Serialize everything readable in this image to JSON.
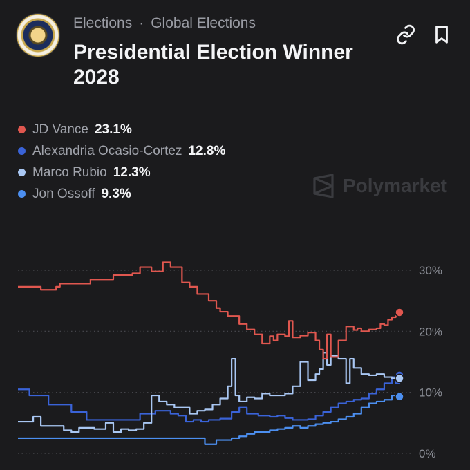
{
  "header": {
    "breadcrumb": [
      "Elections",
      "Global Elections"
    ],
    "breadcrumb_separator": "·",
    "title": "Presidential Election Winner 2028",
    "icons": [
      "link-icon",
      "bookmark-icon"
    ],
    "seal_icon": "presidential-seal-icon"
  },
  "watermark": {
    "text": "Polymarket",
    "icon": "polymarket-logo-icon"
  },
  "colors": {
    "background": "#1b1b1d",
    "vance": "#e0574f",
    "aoc": "#3a63d8",
    "rubio": "#a9c7f3",
    "ossoff": "#4c8ff0"
  },
  "chart_data": {
    "type": "line",
    "ylim": [
      0,
      30
    ],
    "yticks": [
      "30%",
      "20%",
      "10%",
      "0%"
    ],
    "ytick_values": [
      30,
      20,
      10,
      0
    ],
    "grid": true,
    "legend_position": "top-left",
    "x_range": [
      0,
      100
    ],
    "series": [
      {
        "name": "JD Vance",
        "value_label": "23.1%",
        "color": "#e0574f",
        "x": [
          0,
          5,
          6,
          10,
          11,
          18,
          19,
          24,
          25,
          30,
          32,
          35,
          38,
          40,
          43,
          45,
          47,
          49,
          50,
          52,
          53,
          55,
          58,
          60,
          62,
          64,
          66,
          67,
          68,
          70,
          71,
          72,
          74,
          76,
          78,
          79,
          80,
          81,
          82,
          84,
          86,
          88,
          89,
          90,
          92,
          94,
          95,
          96,
          97,
          98,
          99,
          100
        ],
        "y": [
          27.3,
          27.3,
          26.8,
          27.3,
          27.8,
          27.8,
          28.5,
          28.5,
          29.2,
          29.5,
          30.5,
          29.8,
          31.3,
          30.5,
          28,
          27.3,
          26.1,
          26.1,
          25,
          23.8,
          23.2,
          22.5,
          21.2,
          20.3,
          19.5,
          18,
          19.2,
          18.5,
          19.5,
          19.2,
          21.7,
          19,
          19.3,
          19.8,
          18.5,
          17,
          15.5,
          19.5,
          15.8,
          18.5,
          20.8,
          20.2,
          20.5,
          20,
          20.3,
          20.5,
          21.2,
          21,
          21.9,
          22.3,
          22.5,
          23.1
        ]
      },
      {
        "name": "Alexandria Ocasio-Cortez",
        "value_label": "12.8%",
        "color": "#3a63d8",
        "x": [
          0,
          2,
          3,
          6,
          8,
          10,
          14,
          18,
          22,
          24,
          28,
          30,
          32,
          34,
          36,
          38,
          40,
          42,
          44,
          46,
          48,
          50,
          53,
          56,
          58,
          60,
          63,
          66,
          68,
          70,
          72,
          74,
          76,
          78,
          80,
          82,
          84,
          86,
          88,
          90,
          92,
          94,
          96,
          98,
          99,
          100
        ],
        "y": [
          10.5,
          10.5,
          9.5,
          9.5,
          8,
          8,
          6.8,
          5.5,
          5.5,
          5.5,
          5.5,
          5.5,
          6.5,
          6.5,
          7,
          7,
          6.5,
          6.2,
          5.2,
          5.5,
          5.2,
          5.5,
          5.7,
          6.8,
          7.5,
          6.5,
          6.2,
          6,
          6.2,
          5.8,
          5.5,
          5.5,
          5.6,
          6.2,
          6.8,
          7.5,
          8.2,
          8.5,
          8.8,
          9,
          9.8,
          10.5,
          11.5,
          12.5,
          11.5,
          12.8
        ]
      },
      {
        "name": "Marco Rubio",
        "value_label": "12.3%",
        "color": "#a9c7f3",
        "x": [
          0,
          2,
          4,
          6,
          8,
          10,
          12,
          14,
          16,
          20,
          23,
          25,
          27,
          29,
          31,
          33,
          35,
          37,
          39,
          41,
          43,
          45,
          47,
          49,
          51,
          53,
          55,
          56,
          57,
          58,
          60,
          62,
          64,
          66,
          68,
          70,
          72,
          74,
          76,
          78,
          79,
          80,
          81,
          82,
          84,
          86,
          87,
          88,
          90,
          92,
          94,
          96,
          98,
          100
        ],
        "y": [
          5.2,
          5.2,
          6,
          4.5,
          4.5,
          4.5,
          3.8,
          3.5,
          4.2,
          4,
          5,
          3.5,
          4,
          3.8,
          4,
          5,
          9.5,
          8.5,
          8,
          7.5,
          7.5,
          6.5,
          7,
          7.2,
          8,
          9,
          11,
          15.5,
          9.5,
          8.5,
          9.2,
          9,
          9.8,
          9.5,
          9.5,
          9.8,
          11,
          15,
          12,
          13,
          13.8,
          16.5,
          14.5,
          16,
          15.5,
          11.5,
          15.5,
          14,
          13,
          12.8,
          13,
          12.5,
          12.3,
          12.3
        ]
      },
      {
        "name": "Jon Ossoff",
        "value_label": "9.3%",
        "color": "#4c8ff0",
        "x": [
          0,
          10,
          20,
          40,
          48,
          49,
          52,
          56,
          58,
          60,
          62,
          64,
          66,
          68,
          70,
          72,
          74,
          76,
          78,
          80,
          82,
          84,
          86,
          88,
          90,
          92,
          94,
          96,
          98,
          100
        ],
        "y": [
          2.5,
          2.5,
          2.5,
          2.5,
          2.5,
          1.5,
          2.2,
          2.5,
          2.8,
          3.2,
          3.5,
          3.5,
          3.8,
          4,
          4.2,
          4.5,
          4.2,
          4.5,
          4.8,
          5,
          5.2,
          5.6,
          6,
          6.5,
          7.5,
          8.2,
          8.5,
          8.8,
          9.5,
          9.3
        ]
      }
    ]
  }
}
